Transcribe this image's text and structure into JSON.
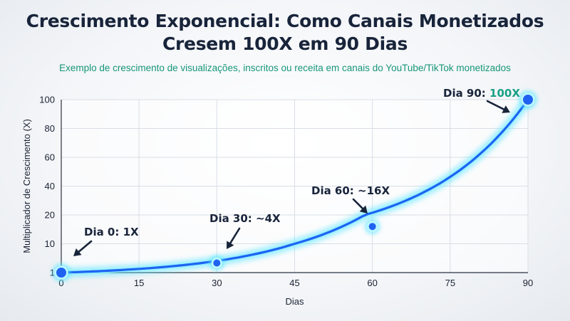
{
  "chart_data": {
    "type": "line",
    "title": "Crescimento Exponencial: Como Canais Monetizados Cresem 100X em 90 Dias",
    "title_lines": [
      "Crescimento Exponencial: Como Canais Monetizados",
      "Cresem 100X em 90 Dias"
    ],
    "subtitle": "Exemplo de crescimento de visualizações, inscritos ou receita em canais do YouTube/TikTok monetizados",
    "xlabel": "Dias",
    "ylabel": "Multiplicador de Crescimento (X)",
    "x_ticks": [
      0,
      15,
      30,
      45,
      60,
      75,
      90
    ],
    "y_ticks": [
      1,
      10,
      20,
      40,
      60,
      80,
      100
    ],
    "xlim": [
      0,
      90
    ],
    "ylim": [
      1,
      100
    ],
    "grid": true,
    "series": [
      {
        "x": [
          0,
          10,
          20,
          30,
          40,
          50,
          60,
          70,
          80,
          90
        ],
        "values": [
          1,
          1.6,
          2.5,
          4,
          6.3,
          10,
          16,
          29,
          54,
          100
        ]
      }
    ],
    "highlight_points": [
      {
        "x": 0,
        "y": 1,
        "label": "Dia 0: 1X"
      },
      {
        "x": 30,
        "y": 4,
        "label": "Dia 30: ~4X"
      },
      {
        "x": 60,
        "y": 16,
        "label": "Dia 60: ~16X"
      },
      {
        "x": 90,
        "y": 100,
        "label": "Dia 90: ",
        "label_highlight": "100X"
      }
    ],
    "colors": {
      "line": "#1f62f2",
      "glow": "#5ce6ff",
      "highlight_text": "#1aa085",
      "subtitle": "#17967a",
      "grid": "#d9dee5"
    }
  }
}
